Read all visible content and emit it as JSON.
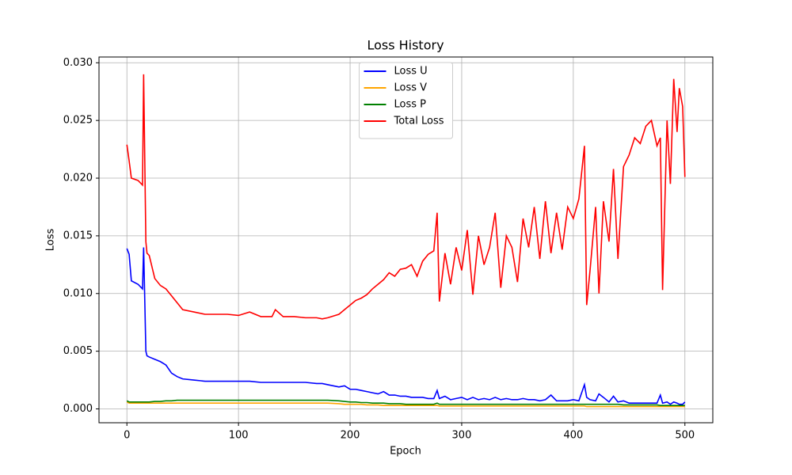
{
  "chart_data": {
    "type": "line",
    "title": "Loss History",
    "x_label": "Epoch",
    "y_label": "Loss",
    "x": [
      0,
      2,
      4,
      10,
      14,
      15,
      17,
      18,
      20,
      25,
      30,
      35,
      40,
      45,
      50,
      60,
      70,
      80,
      90,
      100,
      110,
      120,
      130,
      133,
      140,
      150,
      160,
      170,
      175,
      180,
      190,
      195,
      200,
      205,
      210,
      215,
      220,
      225,
      230,
      235,
      240,
      245,
      250,
      255,
      260,
      265,
      270,
      275,
      278,
      280,
      285,
      290,
      295,
      300,
      305,
      310,
      315,
      320,
      325,
      330,
      335,
      340,
      345,
      350,
      355,
      360,
      365,
      370,
      375,
      380,
      385,
      390,
      395,
      400,
      405,
      410,
      412,
      415,
      420,
      423,
      427,
      432,
      436,
      440,
      445,
      450,
      455,
      460,
      465,
      470,
      475,
      478,
      480,
      484,
      487,
      490,
      493,
      495,
      498,
      500
    ],
    "series": [
      {
        "name": "Loss U",
        "color": "#0000ff",
        "values": [
          0.0139,
          0.0134,
          0.0111,
          0.0108,
          0.0104,
          0.014,
          0.005,
          0.0046,
          0.0045,
          0.0043,
          0.0041,
          0.0038,
          0.0031,
          0.0028,
          0.0026,
          0.0025,
          0.0024,
          0.0024,
          0.0024,
          0.0024,
          0.0024,
          0.0023,
          0.0023,
          0.0023,
          0.0023,
          0.0023,
          0.0023,
          0.0022,
          0.0022,
          0.0021,
          0.0019,
          0.002,
          0.0017,
          0.0017,
          0.0016,
          0.0015,
          0.0014,
          0.0013,
          0.0015,
          0.0012,
          0.0012,
          0.0011,
          0.0011,
          0.001,
          0.001,
          0.001,
          0.0009,
          0.0009,
          0.0016,
          0.0009,
          0.0011,
          0.0008,
          0.0009,
          0.001,
          0.0008,
          0.001,
          0.0008,
          0.0009,
          0.0008,
          0.001,
          0.0008,
          0.0009,
          0.0008,
          0.0008,
          0.0009,
          0.0008,
          0.0008,
          0.0007,
          0.0008,
          0.0012,
          0.0007,
          0.0007,
          0.0007,
          0.0008,
          0.0007,
          0.0021,
          0.001,
          0.0008,
          0.0007,
          0.0013,
          0.001,
          0.0006,
          0.0011,
          0.0006,
          0.0007,
          0.0005,
          0.0005,
          0.0005,
          0.0005,
          0.0005,
          0.0005,
          0.0012,
          0.0005,
          0.0006,
          0.0004,
          0.0006,
          0.0005,
          0.0004,
          0.0004,
          0.0006
        ]
      },
      {
        "name": "Loss V",
        "color": "#ffa500",
        "values": [
          0.0006,
          0.0005,
          0.0005,
          0.0005,
          0.0005,
          0.0005,
          0.0005,
          0.0005,
          0.0005,
          0.0005,
          0.0005,
          0.0005,
          0.0005,
          0.0005,
          0.0005,
          0.0005,
          0.0005,
          0.0005,
          0.0005,
          0.0005,
          0.0005,
          0.0005,
          0.0005,
          0.0005,
          0.0005,
          0.0005,
          0.0005,
          0.0005,
          0.0005,
          0.0005,
          0.00045,
          0.0004,
          0.0004,
          0.0004,
          0.0004,
          0.00035,
          0.00035,
          0.00035,
          0.0003,
          0.0003,
          0.0003,
          0.0003,
          0.0003,
          0.0003,
          0.0003,
          0.0003,
          0.0003,
          0.0003,
          0.0003,
          0.00025,
          0.00025,
          0.00025,
          0.00025,
          0.00025,
          0.00025,
          0.00025,
          0.00025,
          0.00025,
          0.00025,
          0.00025,
          0.00025,
          0.00025,
          0.00025,
          0.00025,
          0.00025,
          0.00025,
          0.00025,
          0.00025,
          0.00025,
          0.00025,
          0.00025,
          0.00025,
          0.00025,
          0.00025,
          0.00025,
          0.00025,
          0.0002,
          0.0002,
          0.0002,
          0.0002,
          0.0002,
          0.0002,
          0.0002,
          0.0002,
          0.0002,
          0.0002,
          0.0002,
          0.0002,
          0.0002,
          0.0002,
          0.0002,
          0.0002,
          0.0002,
          0.0002,
          0.0002,
          0.0002,
          0.0002,
          0.0002,
          0.0002,
          0.0002
        ]
      },
      {
        "name": "Loss P",
        "color": "#008000",
        "values": [
          0.0007,
          0.0006,
          0.0006,
          0.0006,
          0.0006,
          0.0006,
          0.0006,
          0.0006,
          0.0006,
          0.00065,
          0.00065,
          0.0007,
          0.0007,
          0.00075,
          0.00075,
          0.00075,
          0.00075,
          0.00075,
          0.00075,
          0.00075,
          0.00075,
          0.00075,
          0.00075,
          0.00075,
          0.00075,
          0.00075,
          0.00075,
          0.00075,
          0.00075,
          0.00075,
          0.0007,
          0.00065,
          0.0006,
          0.0006,
          0.00055,
          0.00055,
          0.0005,
          0.0005,
          0.0005,
          0.00045,
          0.00045,
          0.00045,
          0.0004,
          0.0004,
          0.0004,
          0.0004,
          0.0004,
          0.0004,
          0.0005,
          0.0004,
          0.0004,
          0.0004,
          0.0004,
          0.0004,
          0.0004,
          0.0004,
          0.0004,
          0.0004,
          0.0004,
          0.0004,
          0.0004,
          0.0004,
          0.0004,
          0.0004,
          0.0004,
          0.0004,
          0.0004,
          0.0004,
          0.0004,
          0.0004,
          0.0004,
          0.0004,
          0.0004,
          0.0004,
          0.0004,
          0.0004,
          0.0004,
          0.0004,
          0.0004,
          0.0004,
          0.0004,
          0.0004,
          0.0004,
          0.0004,
          0.00035,
          0.00035,
          0.00035,
          0.00035,
          0.00035,
          0.00035,
          0.00035,
          0.0003,
          0.0003,
          0.0003,
          0.0003,
          0.0003,
          0.0003,
          0.0003,
          0.0003,
          0.0003
        ]
      },
      {
        "name": "Total Loss",
        "color": "#ff0000",
        "values": [
          0.0229,
          0.0215,
          0.02,
          0.0198,
          0.0194,
          0.029,
          0.0145,
          0.0135,
          0.0133,
          0.0113,
          0.0107,
          0.0104,
          0.0098,
          0.0092,
          0.0086,
          0.0084,
          0.0082,
          0.0082,
          0.0082,
          0.0081,
          0.0084,
          0.008,
          0.008,
          0.0086,
          0.008,
          0.008,
          0.0079,
          0.0079,
          0.0078,
          0.0079,
          0.0082,
          0.0086,
          0.009,
          0.0094,
          0.0096,
          0.0099,
          0.0104,
          0.0108,
          0.0112,
          0.0118,
          0.0115,
          0.0121,
          0.0122,
          0.0125,
          0.0115,
          0.0128,
          0.0134,
          0.0137,
          0.017,
          0.0093,
          0.0135,
          0.0108,
          0.014,
          0.012,
          0.0155,
          0.0099,
          0.015,
          0.0125,
          0.014,
          0.017,
          0.0105,
          0.015,
          0.014,
          0.011,
          0.0165,
          0.014,
          0.0175,
          0.013,
          0.018,
          0.0135,
          0.017,
          0.0138,
          0.0175,
          0.0165,
          0.0182,
          0.0228,
          0.009,
          0.012,
          0.0175,
          0.01,
          0.018,
          0.0145,
          0.0208,
          0.013,
          0.021,
          0.022,
          0.0235,
          0.023,
          0.0245,
          0.025,
          0.0228,
          0.0235,
          0.0103,
          0.025,
          0.0195,
          0.0286,
          0.024,
          0.0278,
          0.0262,
          0.0201
        ]
      }
    ],
    "xlim": [
      -25,
      525
    ],
    "xticks": [
      0,
      100,
      200,
      300,
      400,
      500
    ],
    "ylim": [
      -0.0012,
      0.0305
    ],
    "yticks": [
      {
        "value": 0,
        "label": "0.000"
      },
      {
        "value": 0.005,
        "label": "0.005"
      },
      {
        "value": 0.01,
        "label": "0.010"
      },
      {
        "value": 0.015,
        "label": "0.015"
      },
      {
        "value": 0.02,
        "label": "0.020"
      },
      {
        "value": 0.025,
        "label": "0.025"
      },
      {
        "value": 0.03,
        "label": "0.030"
      }
    ],
    "grid": true,
    "legend": "upper center"
  }
}
